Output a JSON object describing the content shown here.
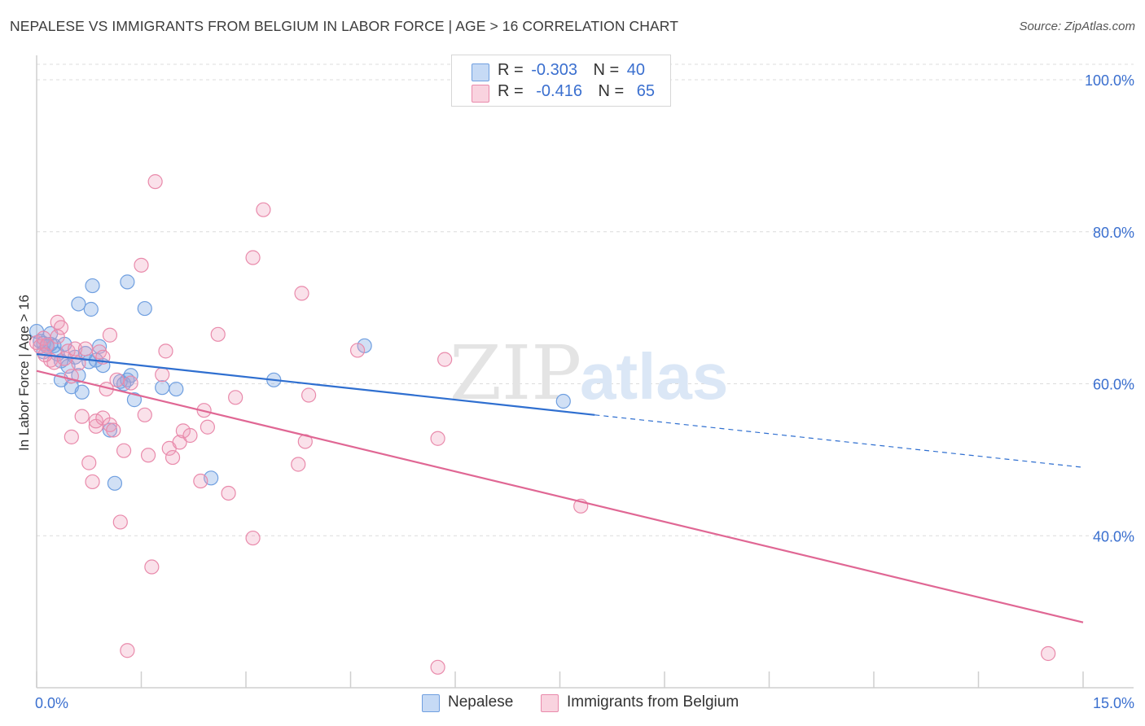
{
  "title": "NEPALESE VS IMMIGRANTS FROM BELGIUM IN LABOR FORCE | AGE > 16 CORRELATION CHART",
  "source": "Source: ZipAtlas.com",
  "watermark": {
    "zip": "ZIP",
    "atlas": "atlas"
  },
  "stats_legend": [
    {
      "r_label": "R =",
      "r_value": "-0.303",
      "n_label": "N =",
      "n_value": "40",
      "fill": "#a9c8f0",
      "stroke": "#6f9fe0"
    },
    {
      "r_label": "R =",
      "r_value": "-0.416",
      "n_label": "N =",
      "n_value": "65",
      "fill": "#f7bfd0",
      "stroke": "#e98aab"
    }
  ],
  "colors": {
    "blue_point": "#7aa6e3",
    "pink_point": "#ef9ab8",
    "blue_line": "#2f6fd0",
    "pink_line": "#e06794",
    "grid": "#dcdcdc",
    "axis_text": "#3a6fcf"
  },
  "chart_data": {
    "type": "scatter",
    "title": "NEPALESE VS IMMIGRANTS FROM BELGIUM IN LABOR FORCE | AGE > 16 CORRELATION CHART",
    "xlabel": "",
    "ylabel": "In Labor Force | Age > 16",
    "xlim": [
      0,
      15
    ],
    "ylim": [
      20,
      103
    ],
    "x_tick_labels": [
      "0.0%",
      "15.0%"
    ],
    "y_ticks": [
      40,
      60,
      80,
      100
    ],
    "y_tick_labels": [
      "40.0%",
      "60.0%",
      "80.0%",
      "100.0%"
    ],
    "grid": true,
    "legend_position": "bottom-center",
    "series": [
      {
        "name": "Nepalese",
        "color": "#7aa6e3",
        "trend": {
          "x0": 0.0,
          "y0": 63.9,
          "x1": 8.0,
          "y1": 55.9,
          "dashed_to_x": 15.0,
          "dashed_to_y": 49.0
        },
        "points": [
          [
            0.0,
            66.9
          ],
          [
            0.05,
            65.6
          ],
          [
            0.1,
            65.3
          ],
          [
            0.15,
            64.9
          ],
          [
            0.2,
            66.6
          ],
          [
            0.25,
            65.0
          ],
          [
            0.3,
            63.9
          ],
          [
            0.35,
            60.5
          ],
          [
            0.4,
            65.2
          ],
          [
            0.45,
            62.3
          ],
          [
            0.5,
            59.6
          ],
          [
            0.55,
            63.5
          ],
          [
            0.6,
            61.1
          ],
          [
            0.6,
            70.5
          ],
          [
            0.65,
            58.9
          ],
          [
            0.75,
            62.9
          ],
          [
            0.78,
            69.8
          ],
          [
            0.8,
            72.9
          ],
          [
            0.85,
            63.1
          ],
          [
            0.9,
            64.9
          ],
          [
            0.95,
            62.4
          ],
          [
            1.05,
            53.9
          ],
          [
            1.12,
            46.9
          ],
          [
            1.2,
            60.3
          ],
          [
            1.3,
            73.4
          ],
          [
            1.3,
            60.5
          ],
          [
            1.35,
            61.1
          ],
          [
            1.4,
            57.9
          ],
          [
            1.55,
            69.9
          ],
          [
            1.8,
            59.5
          ],
          [
            2.0,
            59.3
          ],
          [
            2.5,
            47.6
          ],
          [
            3.4,
            60.5
          ],
          [
            4.7,
            65.0
          ],
          [
            7.55,
            57.7
          ],
          [
            0.1,
            64.2
          ],
          [
            0.2,
            65.2
          ],
          [
            0.7,
            64.0
          ],
          [
            0.35,
            63.0
          ],
          [
            1.25,
            60.0
          ]
        ]
      },
      {
        "name": "Immigrants from Belgium",
        "color": "#ef9ab8",
        "trend": {
          "x0": 0.0,
          "y0": 61.7,
          "x1": 15.0,
          "y1": 28.6
        },
        "points": [
          [
            0.0,
            65.4
          ],
          [
            0.05,
            64.9
          ],
          [
            0.1,
            66.0
          ],
          [
            0.15,
            65.1
          ],
          [
            0.2,
            63.1
          ],
          [
            0.25,
            62.8
          ],
          [
            0.3,
            68.1
          ],
          [
            0.35,
            67.4
          ],
          [
            0.4,
            63.3
          ],
          [
            0.45,
            64.3
          ],
          [
            0.5,
            61.0
          ],
          [
            0.5,
            53.0
          ],
          [
            0.55,
            64.6
          ],
          [
            0.6,
            62.7
          ],
          [
            0.65,
            55.7
          ],
          [
            0.7,
            64.6
          ],
          [
            0.75,
            49.6
          ],
          [
            0.8,
            47.1
          ],
          [
            0.85,
            54.4
          ],
          [
            0.85,
            55.1
          ],
          [
            0.9,
            64.2
          ],
          [
            0.95,
            55.5
          ],
          [
            1.0,
            59.3
          ],
          [
            1.05,
            54.6
          ],
          [
            1.05,
            66.4
          ],
          [
            1.1,
            53.9
          ],
          [
            1.2,
            41.8
          ],
          [
            1.25,
            51.2
          ],
          [
            1.3,
            24.9
          ],
          [
            1.35,
            60.1
          ],
          [
            1.5,
            75.6
          ],
          [
            1.55,
            55.9
          ],
          [
            1.6,
            50.6
          ],
          [
            1.65,
            35.9
          ],
          [
            1.7,
            86.6
          ],
          [
            1.8,
            61.2
          ],
          [
            1.85,
            64.3
          ],
          [
            1.9,
            51.5
          ],
          [
            1.95,
            50.3
          ],
          [
            2.05,
            52.3
          ],
          [
            2.1,
            53.8
          ],
          [
            2.2,
            53.2
          ],
          [
            2.35,
            47.2
          ],
          [
            2.4,
            56.5
          ],
          [
            2.45,
            54.3
          ],
          [
            2.6,
            66.5
          ],
          [
            2.75,
            45.6
          ],
          [
            2.85,
            58.2
          ],
          [
            3.1,
            39.7
          ],
          [
            3.1,
            76.6
          ],
          [
            3.25,
            82.9
          ],
          [
            3.75,
            49.4
          ],
          [
            3.8,
            71.9
          ],
          [
            3.85,
            52.4
          ],
          [
            3.9,
            58.5
          ],
          [
            4.6,
            64.4
          ],
          [
            5.75,
            52.8
          ],
          [
            5.75,
            22.7
          ],
          [
            5.85,
            63.2
          ],
          [
            7.8,
            43.9
          ],
          [
            14.5,
            24.5
          ],
          [
            0.12,
            63.8
          ],
          [
            0.3,
            66.2
          ],
          [
            0.95,
            63.5
          ],
          [
            1.15,
            60.5
          ]
        ]
      }
    ]
  },
  "bottom_legend": [
    {
      "label": "Nepalese",
      "fill": "#a9c8f0",
      "stroke": "#6f9fe0"
    },
    {
      "label": "Immigrants from Belgium",
      "fill": "#f7bfd0",
      "stroke": "#e98aab"
    }
  ]
}
